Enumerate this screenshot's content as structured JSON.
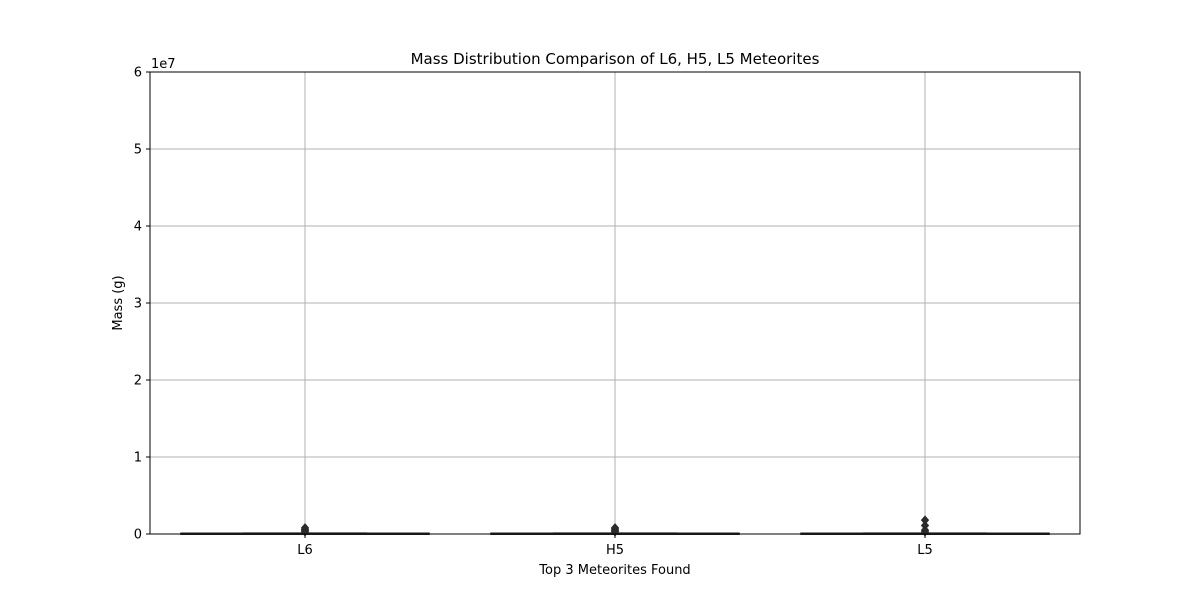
{
  "chart_data": {
    "type": "box",
    "title": "Mass Distribution Comparison of L6, H5, L5 Meteorites",
    "xlabel": "Top 3 Meteorites Found",
    "ylabel": "Mass (g)",
    "y_offset_label": "1e7",
    "categories": [
      "L6",
      "H5",
      "L5"
    ],
    "ylim": [
      0,
      60000000
    ],
    "yticks": [
      0,
      10000000,
      20000000,
      30000000,
      40000000,
      50000000,
      60000000
    ],
    "ytick_labels": [
      "0",
      "1",
      "2",
      "3",
      "4",
      "5",
      "6"
    ],
    "grid": true,
    "boxes": [
      {
        "category": "L6",
        "q1": 0,
        "median": 20000,
        "q3": 100000,
        "whisker_low": 0,
        "whisker_high": 120000,
        "outliers": [
          300000,
          450000,
          600000,
          800000
        ]
      },
      {
        "category": "H5",
        "q1": 0,
        "median": 20000,
        "q3": 100000,
        "whisker_low": 0,
        "whisker_high": 120000,
        "outliers": [
          300000,
          450000,
          650000,
          800000
        ]
      },
      {
        "category": "L5",
        "q1": 0,
        "median": 20000,
        "q3": 100000,
        "whisker_low": 0,
        "whisker_high": 120000,
        "outliers": [
          300000,
          500000,
          1100000,
          1800000
        ]
      }
    ],
    "colors": {
      "box": "#2b2b2b",
      "grid": "#b0b0b0",
      "outlier": "#2b2b2b"
    }
  }
}
